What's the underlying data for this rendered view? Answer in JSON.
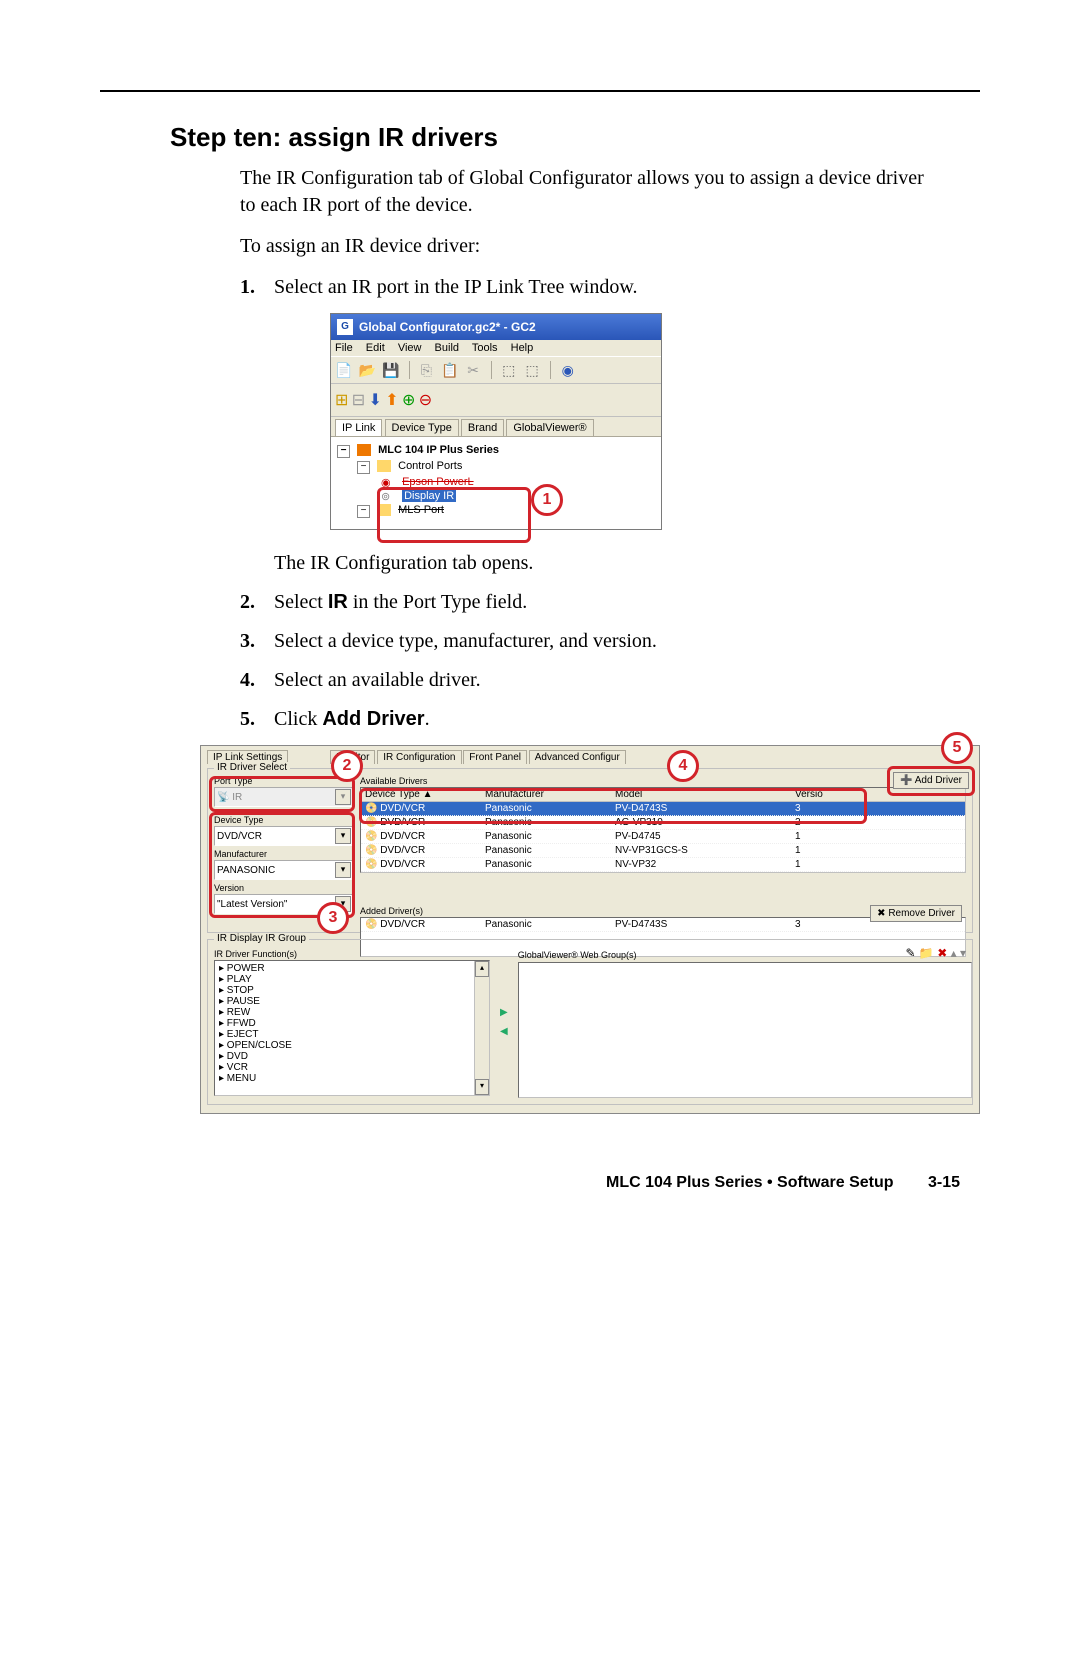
{
  "colors": {
    "accent_red": "#d2232a",
    "win_bg": "#ece9d8",
    "title_grad_top": "#4a79d7",
    "title_grad_bottom": "#2a56b8",
    "selection_blue": "#316ac5"
  },
  "heading": "Step ten: assign IR drivers",
  "intro1": "The IR Configuration tab of Global Configurator allows you to assign a device driver to each IR port of the device.",
  "intro2": "To assign an IR device driver:",
  "steps": {
    "s1": {
      "num": "1.",
      "text": "Select an IR port in the IP Link Tree window."
    },
    "mid": "The IR Configuration tab opens.",
    "s2": {
      "num": "2.",
      "pre": "Select ",
      "bold": "IR",
      "post": " in the Port Type field."
    },
    "s3": {
      "num": "3.",
      "text": "Select a device type, manufacturer, and version."
    },
    "s4": {
      "num": "4.",
      "text": "Select an available driver."
    },
    "s5": {
      "num": "5.",
      "pre": "Click ",
      "bold": "Add Driver",
      "post": "."
    }
  },
  "shot1": {
    "title": "Global Configurator.gc2* - GC2",
    "menus": {
      "file": "File",
      "edit": "Edit",
      "view": "View",
      "build": "Build",
      "tools": "Tools",
      "help": "Help"
    },
    "tabs": {
      "iplink": "IP Link",
      "devtype": "Device Type",
      "brand": "Brand",
      "gv": "GlobalViewer®"
    },
    "tree": {
      "root": "MLC 104 IP Plus Series",
      "control_ports": "Control Ports",
      "epson": "Epson PowerL",
      "display_ir": "Display IR",
      "mls": "MLS Port"
    },
    "callout1": "1"
  },
  "shot2": {
    "tabs": {
      "ipl": "IP Link Settings",
      "mon": "Monitor",
      "irc": "IR Configuration",
      "fp": "Front Panel",
      "adv": "Advanced Configur"
    },
    "ir_driver_select": "IR Driver Select",
    "port_type_label": "Port Type",
    "port_type_value": "IR",
    "device_type_label": "Device Type",
    "device_type_value": "DVD/VCR",
    "manufacturer_label": "Manufacturer",
    "manufacturer_value": "PANASONIC",
    "version_label": "Version",
    "version_value": "\"Latest Version\"",
    "available_drivers": "Available Drivers",
    "cols": {
      "dt": "Device Type  ▲",
      "mfr": "Manufacturer",
      "model": "Model",
      "ver": "Versio"
    },
    "rows": [
      {
        "dt": "DVD/VCR",
        "mfr": "Panasonic",
        "model": "PV-D4743S",
        "ver": "3",
        "sel": true
      },
      {
        "dt": "DVD/VCR",
        "mfr": "Panasonic",
        "model": "AG-VP310",
        "ver": "2"
      },
      {
        "dt": "DVD/VCR",
        "mfr": "Panasonic",
        "model": "PV-D4745",
        "ver": "1"
      },
      {
        "dt": "DVD/VCR",
        "mfr": "Panasonic",
        "model": "NV-VP31GCS-S",
        "ver": "1"
      },
      {
        "dt": "DVD/VCR",
        "mfr": "Panasonic",
        "model": "NV-VP32",
        "ver": "1"
      }
    ],
    "add_driver_btn": "Add Driver",
    "added_drivers": "Added Driver(s)",
    "added_row": {
      "dt": "DVD/VCR",
      "mfr": "Panasonic",
      "model": "PV-D4743S",
      "ver": "3"
    },
    "remove_driver_btn": "Remove Driver",
    "ir_group": "IR Display IR Group",
    "ir_funcs_label": "IR Driver Function(s)",
    "ir_funcs": [
      "POWER",
      "PLAY",
      "STOP",
      "PAUSE",
      "REW",
      "FFWD",
      "EJECT",
      "OPEN/CLOSE",
      "DVD",
      "VCR",
      "MENU"
    ],
    "gv_groups_label": "GlobalViewer® Web Group(s)",
    "callout2": "2",
    "callout3": "3",
    "callout4": "4",
    "callout5": "5"
  },
  "footer": {
    "text": "MLC 104 Plus Series • Software Setup",
    "page": "3-15"
  }
}
